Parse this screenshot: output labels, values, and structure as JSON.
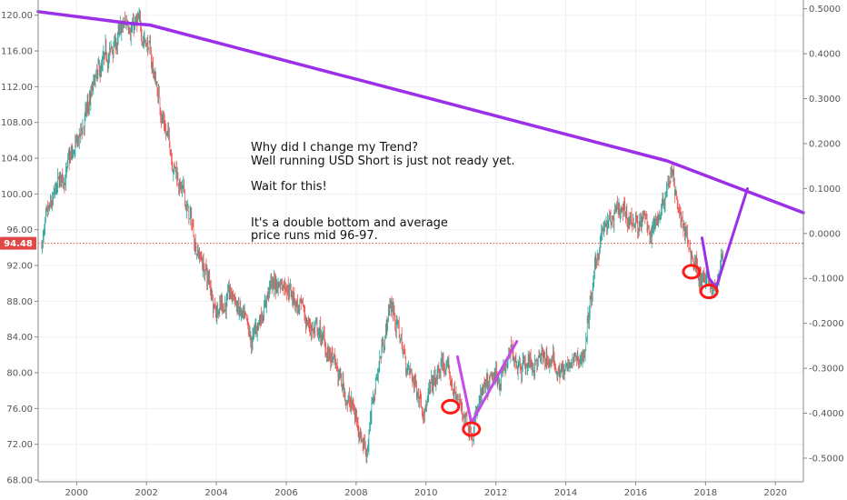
{
  "chart_data": {
    "type": "line",
    "title": "",
    "xlabel": "",
    "ylabel": "",
    "xlim": [
      1998.9,
      2020.8
    ],
    "ylim": [
      67.8,
      121.7
    ],
    "y2lim": [
      -0.5527,
      0.5195
    ],
    "x_ticks": [
      2000,
      2002,
      2004,
      2006,
      2008,
      2010,
      2012,
      2014,
      2016,
      2018,
      2020
    ],
    "x_tick_labels": [
      "2000",
      "2002",
      "2004",
      "2006",
      "2008",
      "2010",
      "2012",
      "2014",
      "2016",
      "2018",
      "2020"
    ],
    "y_ticks": [
      68,
      72,
      76,
      80,
      84,
      88,
      92,
      96,
      100,
      104,
      108,
      112,
      116,
      120
    ],
    "y_tick_labels": [
      "68.00",
      "72.00",
      "76.00",
      "80.00",
      "84.00",
      "88.00",
      "92.00",
      "96.00",
      "100.00",
      "104.00",
      "108.00",
      "112.00",
      "116.00",
      "120.00"
    ],
    "y2_ticks": [
      -0.5,
      -0.4,
      -0.3,
      -0.2,
      -0.1,
      0.0,
      0.1,
      0.2,
      0.3,
      0.4,
      0.5
    ],
    "y2_tick_labels": [
      "-0.5000",
      "-0.4000",
      "-0.3000",
      "-0.2000",
      "-0.1000",
      "0.0000",
      "0.1000",
      "0.2000",
      "0.3000",
      "0.4000",
      "0.5000"
    ],
    "grid": true,
    "current_price": {
      "value": 94.48,
      "label": "94.48"
    },
    "series": [
      {
        "type": "candlestick",
        "x": [
          1999.0,
          1999.5,
          2000.0,
          2000.5,
          2001.0,
          2001.5,
          2002.0,
          2002.5,
          2003.0,
          2003.5,
          2004.0,
          2004.5,
          2005.0,
          2005.5,
          2006.0,
          2006.5,
          2007.0,
          2007.5,
          2008.0,
          2008.3,
          2008.6,
          2009.0,
          2009.5,
          2010.0,
          2010.5,
          2011.0,
          2011.3,
          2011.6,
          2012.0,
          2012.5,
          2013.0,
          2013.5,
          2014.0,
          2014.5,
          2015.0,
          2015.5,
          2016.0,
          2016.5,
          2017.0,
          2017.5,
          2018.0,
          2018.3,
          2018.5
        ],
        "y": [
          94.5,
          101.0,
          105.0,
          112.0,
          116.0,
          119.5,
          117.5,
          108.0,
          100.5,
          93.5,
          87.5,
          88.5,
          83.0,
          89.5,
          90.5,
          86.0,
          84.0,
          79.5,
          75.0,
          71.5,
          80.0,
          88.0,
          80.0,
          76.5,
          81.0,
          76.0,
          74.0,
          77.0,
          79.0,
          82.0,
          81.0,
          81.5,
          80.0,
          82.0,
          95.5,
          97.5,
          97.0,
          96.0,
          102.5,
          94.0,
          90.0,
          89.5,
          94.5
        ]
      },
      {
        "name": "",
        "type": "trendline",
        "x": [
          1998.9,
          2001.5,
          2002.1,
          2016.9,
          2020.8
        ],
        "y": [
          120.4,
          119.1,
          118.9,
          103.7,
          97.9
        ]
      },
      {
        "type": "projection",
        "x": [
          2010.9,
          2011.3,
          2011.6,
          2012.6
        ],
        "y": [
          81.8,
          74.4,
          76.5,
          83.5
        ]
      },
      {
        "type": "projection",
        "x": [
          2017.9,
          2018.1,
          2018.3,
          2019.2
        ],
        "y": [
          95.1,
          90.6,
          89.5,
          100.6
        ]
      }
    ],
    "markers": [
      {
        "x": 2010.7,
        "y": 76.2
      },
      {
        "x": 2011.3,
        "y": 73.7
      },
      {
        "x": 2017.6,
        "y": 91.3
      },
      {
        "x": 2018.1,
        "y": 89.1
      }
    ],
    "annotations": [
      "Why did I change my Trend?",
      "Well running USD Short is just not ready yet.",
      "Wait for this!",
      "It's a double bottom and average",
      "price runs mid 96-97."
    ]
  }
}
